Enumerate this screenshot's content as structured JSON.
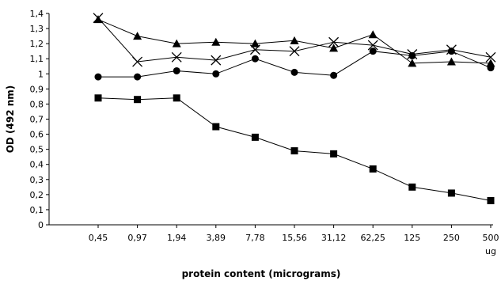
{
  "chart_data": {
    "type": "line",
    "xlabel": "protein content (micrograms)",
    "ylabel": "OD (492 nm)",
    "x_unit": "ug",
    "categories": [
      "0,45",
      "0,97",
      "1,94",
      "3,89",
      "7,78",
      "15,56",
      "31,12",
      "62,25",
      "125",
      "250",
      "500"
    ],
    "y_ticks": [
      "0",
      "0,1",
      "0,2",
      "0,3",
      "0,4",
      "0,5",
      "0,6",
      "0,7",
      "0,8",
      "0,9",
      "1",
      "1,1",
      "1,2",
      "1,3",
      "1,4"
    ],
    "ylim": [
      0,
      1.4
    ],
    "grid": false,
    "legend": "none",
    "series": [
      {
        "marker": "triangle",
        "values": [
          1.36,
          1.25,
          1.2,
          1.21,
          1.2,
          1.22,
          1.17,
          1.26,
          1.07,
          1.08,
          1.07
        ]
      },
      {
        "marker": "x",
        "values": [
          1.37,
          1.08,
          1.11,
          1.09,
          1.16,
          1.15,
          1.21,
          1.19,
          1.13,
          1.16,
          1.11
        ]
      },
      {
        "marker": "circle",
        "values": [
          0.98,
          0.98,
          1.02,
          1.0,
          1.1,
          1.01,
          0.99,
          1.15,
          1.12,
          1.15,
          1.04
        ]
      },
      {
        "marker": "square",
        "values": [
          0.84,
          0.83,
          0.84,
          0.65,
          0.58,
          0.49,
          0.47,
          0.37,
          0.25,
          0.21,
          0.16
        ]
      }
    ],
    "colors": {
      "line": "#000000",
      "background": "#ffffff"
    }
  }
}
